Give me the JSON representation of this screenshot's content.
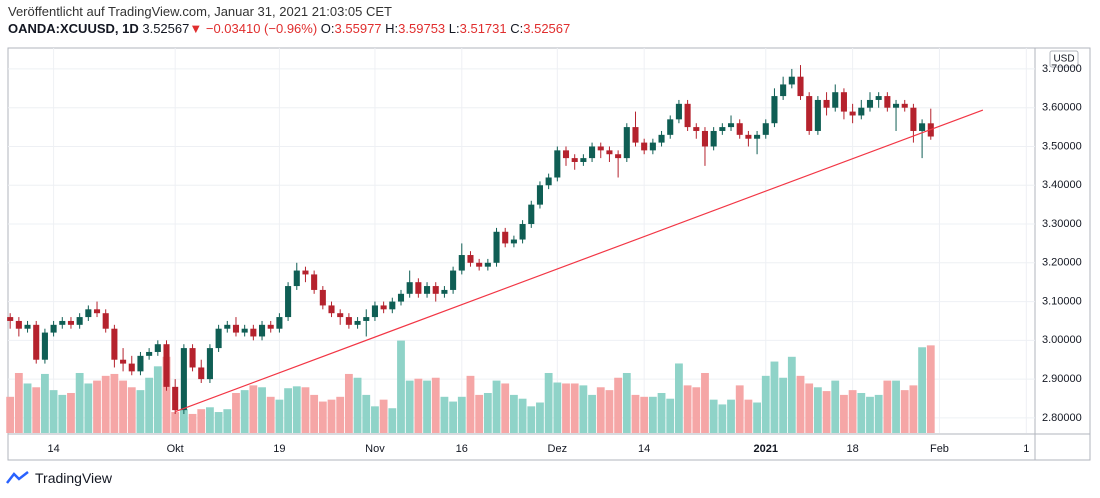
{
  "header": {
    "published": "Veröffentlicht auf TradingView.com, Januar 31, 2021 21:03:05 CET",
    "symbol": "OANDA:XCUUSD, 1D",
    "last": "3.52567",
    "arrow": "▼",
    "change": "−0.03410 (−0.96%)",
    "open_label": "O:",
    "open": "3.55977",
    "high_label": "H:",
    "high": "3.59753",
    "low_label": "L:",
    "low": "3.51731",
    "close_label": "C:",
    "close": "3.52567"
  },
  "footer": {
    "logo": "TradingView"
  },
  "chart_data": {
    "type": "candlestick",
    "currency": "USD",
    "up_color": "#0f5e54",
    "down_color": "#b5222d",
    "volume_up_color": "#8fd3c8",
    "volume_down_color": "#f5a6a6",
    "grid": true,
    "xlim": [
      -0.25,
      118
    ],
    "ylim": [
      2.761,
      3.754
    ],
    "yticks": [
      {
        "value": 2.8,
        "label": "2.80000"
      },
      {
        "value": 2.9,
        "label": "2.90000"
      },
      {
        "value": 3.0,
        "label": "3.00000"
      },
      {
        "value": 3.1,
        "label": "3.10000"
      },
      {
        "value": 3.2,
        "label": "3.20000"
      },
      {
        "value": 3.3,
        "label": "3.30000"
      },
      {
        "value": 3.4,
        "label": "3.40000"
      },
      {
        "value": 3.5,
        "label": "3.50000"
      },
      {
        "value": 3.6,
        "label": "3.60000"
      },
      {
        "value": 3.7,
        "label": "3.70000"
      }
    ],
    "xticks": [
      {
        "value": 5,
        "label": "14"
      },
      {
        "value": 19,
        "label": "Okt"
      },
      {
        "value": 31,
        "label": "19"
      },
      {
        "value": 42,
        "label": "Nov"
      },
      {
        "value": 52,
        "label": "16"
      },
      {
        "value": 63,
        "label": "Dez"
      },
      {
        "value": 73,
        "label": "14"
      },
      {
        "value": 87,
        "label": "2021"
      },
      {
        "value": 97,
        "label": "18"
      },
      {
        "value": 107,
        "label": "Feb"
      },
      {
        "value": 117,
        "label": "1"
      }
    ],
    "ohlc": [
      [
        3.06,
        3.07,
        3.03,
        3.05
      ],
      [
        3.05,
        3.06,
        3.01,
        3.03
      ],
      [
        3.03,
        3.05,
        3.02,
        3.04
      ],
      [
        3.04,
        3.05,
        2.94,
        2.95
      ],
      [
        2.95,
        3.03,
        2.94,
        3.02
      ],
      [
        3.02,
        3.05,
        3.01,
        3.04
      ],
      [
        3.04,
        3.06,
        3.03,
        3.05
      ],
      [
        3.05,
        3.06,
        3.03,
        3.04
      ],
      [
        3.04,
        3.07,
        3.03,
        3.06
      ],
      [
        3.06,
        3.09,
        3.05,
        3.08
      ],
      [
        3.08,
        3.1,
        3.06,
        3.07
      ],
      [
        3.07,
        3.08,
        3.02,
        3.03
      ],
      [
        3.03,
        3.04,
        2.93,
        2.95
      ],
      [
        2.95,
        2.98,
        2.92,
        2.94
      ],
      [
        2.94,
        2.96,
        2.91,
        2.92
      ],
      [
        2.92,
        2.97,
        2.91,
        2.96
      ],
      [
        2.96,
        2.98,
        2.95,
        2.97
      ],
      [
        2.97,
        3.0,
        2.96,
        2.99
      ],
      [
        2.99,
        3.0,
        2.87,
        2.88
      ],
      [
        2.88,
        2.9,
        2.81,
        2.82
      ],
      [
        2.82,
        2.99,
        2.81,
        2.98
      ],
      [
        2.98,
        2.99,
        2.92,
        2.93
      ],
      [
        2.93,
        2.95,
        2.89,
        2.9
      ],
      [
        2.9,
        2.99,
        2.89,
        2.98
      ],
      [
        2.98,
        3.04,
        2.97,
        3.03
      ],
      [
        3.03,
        3.05,
        3.02,
        3.04
      ],
      [
        3.04,
        3.06,
        3.01,
        3.02
      ],
      [
        3.02,
        3.04,
        3.01,
        3.03
      ],
      [
        3.03,
        3.04,
        3.0,
        3.01
      ],
      [
        3.01,
        3.05,
        3.0,
        3.04
      ],
      [
        3.04,
        3.05,
        3.02,
        3.03
      ],
      [
        3.03,
        3.07,
        3.02,
        3.06
      ],
      [
        3.06,
        3.15,
        3.05,
        3.14
      ],
      [
        3.14,
        3.2,
        3.13,
        3.18
      ],
      [
        3.18,
        3.19,
        3.15,
        3.17
      ],
      [
        3.17,
        3.18,
        3.12,
        3.13
      ],
      [
        3.13,
        3.14,
        3.08,
        3.09
      ],
      [
        3.09,
        3.1,
        3.06,
        3.07
      ],
      [
        3.07,
        3.08,
        3.04,
        3.06
      ],
      [
        3.06,
        3.07,
        3.03,
        3.04
      ],
      [
        3.04,
        3.06,
        3.03,
        3.05
      ],
      [
        3.05,
        3.08,
        3.01,
        3.06
      ],
      [
        3.06,
        3.1,
        3.05,
        3.09
      ],
      [
        3.09,
        3.1,
        3.07,
        3.08
      ],
      [
        3.08,
        3.11,
        3.07,
        3.1
      ],
      [
        3.1,
        3.13,
        3.09,
        3.12
      ],
      [
        3.12,
        3.18,
        3.11,
        3.15
      ],
      [
        3.15,
        3.16,
        3.11,
        3.12
      ],
      [
        3.12,
        3.15,
        3.11,
        3.14
      ],
      [
        3.14,
        3.15,
        3.1,
        3.12
      ],
      [
        3.12,
        3.14,
        3.11,
        3.13
      ],
      [
        3.13,
        3.19,
        3.12,
        3.18
      ],
      [
        3.18,
        3.25,
        3.17,
        3.22
      ],
      [
        3.22,
        3.23,
        3.19,
        3.2
      ],
      [
        3.2,
        3.21,
        3.18,
        3.19
      ],
      [
        3.19,
        3.21,
        3.18,
        3.2
      ],
      [
        3.2,
        3.29,
        3.19,
        3.28
      ],
      [
        3.28,
        3.29,
        3.24,
        3.25
      ],
      [
        3.25,
        3.27,
        3.24,
        3.26
      ],
      [
        3.26,
        3.31,
        3.25,
        3.3
      ],
      [
        3.3,
        3.36,
        3.29,
        3.35
      ],
      [
        3.35,
        3.41,
        3.34,
        3.4
      ],
      [
        3.4,
        3.43,
        3.39,
        3.42
      ],
      [
        3.42,
        3.5,
        3.41,
        3.49
      ],
      [
        3.49,
        3.5,
        3.45,
        3.47
      ],
      [
        3.47,
        3.48,
        3.44,
        3.46
      ],
      [
        3.46,
        3.48,
        3.45,
        3.47
      ],
      [
        3.47,
        3.51,
        3.46,
        3.5
      ],
      [
        3.5,
        3.51,
        3.47,
        3.49
      ],
      [
        3.49,
        3.5,
        3.46,
        3.48
      ],
      [
        3.48,
        3.49,
        3.42,
        3.47
      ],
      [
        3.47,
        3.56,
        3.46,
        3.55
      ],
      [
        3.55,
        3.59,
        3.5,
        3.51
      ],
      [
        3.51,
        3.52,
        3.48,
        3.49
      ],
      [
        3.49,
        3.52,
        3.48,
        3.51
      ],
      [
        3.51,
        3.54,
        3.5,
        3.53
      ],
      [
        3.53,
        3.58,
        3.52,
        3.57
      ],
      [
        3.57,
        3.62,
        3.56,
        3.61
      ],
      [
        3.61,
        3.62,
        3.54,
        3.55
      ],
      [
        3.55,
        3.56,
        3.52,
        3.54
      ],
      [
        3.54,
        3.55,
        3.45,
        3.5
      ],
      [
        3.5,
        3.55,
        3.49,
        3.54
      ],
      [
        3.54,
        3.56,
        3.53,
        3.55
      ],
      [
        3.55,
        3.58,
        3.54,
        3.56
      ],
      [
        3.56,
        3.57,
        3.52,
        3.53
      ],
      [
        3.53,
        3.54,
        3.5,
        3.52
      ],
      [
        3.52,
        3.54,
        3.48,
        3.53
      ],
      [
        3.53,
        3.57,
        3.52,
        3.56
      ],
      [
        3.56,
        3.65,
        3.55,
        3.63
      ],
      [
        3.63,
        3.68,
        3.62,
        3.66
      ],
      [
        3.66,
        3.7,
        3.65,
        3.68
      ],
      [
        3.68,
        3.71,
        3.62,
        3.63
      ],
      [
        3.63,
        3.64,
        3.53,
        3.54
      ],
      [
        3.54,
        3.63,
        3.53,
        3.62
      ],
      [
        3.62,
        3.64,
        3.58,
        3.6
      ],
      [
        3.6,
        3.66,
        3.59,
        3.64
      ],
      [
        3.64,
        3.65,
        3.57,
        3.59
      ],
      [
        3.59,
        3.61,
        3.56,
        3.58
      ],
      [
        3.58,
        3.62,
        3.57,
        3.6
      ],
      [
        3.6,
        3.64,
        3.59,
        3.62
      ],
      [
        3.62,
        3.64,
        3.6,
        3.63
      ],
      [
        3.63,
        3.64,
        3.59,
        3.6
      ],
      [
        3.6,
        3.62,
        3.54,
        3.61
      ],
      [
        3.61,
        3.62,
        3.59,
        3.6
      ],
      [
        3.6,
        3.61,
        3.51,
        3.54
      ],
      [
        3.54,
        3.57,
        3.47,
        3.55977
      ],
      [
        3.55977,
        3.59753,
        3.51731,
        3.52567
      ]
    ],
    "volume": [
      38,
      63,
      52,
      48,
      62,
      45,
      40,
      42,
      63,
      52,
      55,
      60,
      62,
      55,
      48,
      45,
      58,
      70,
      80,
      22,
      25,
      20,
      25,
      27,
      22,
      25,
      42,
      45,
      50,
      48,
      38,
      35,
      47,
      49,
      48,
      40,
      33,
      35,
      38,
      62,
      58,
      40,
      28,
      35,
      26,
      97,
      55,
      57,
      55,
      58,
      38,
      33,
      38,
      60,
      40,
      42,
      55,
      52,
      40,
      36,
      28,
      32,
      63,
      53,
      52,
      52,
      50,
      40,
      48,
      45,
      58,
      63,
      40,
      38,
      38,
      42,
      36,
      73,
      50,
      48,
      63,
      35,
      30,
      35,
      50,
      35,
      32,
      60,
      75,
      58,
      80,
      60,
      52,
      48,
      44,
      55,
      40,
      45,
      42,
      38,
      40,
      55,
      55,
      45,
      50,
      90,
      92
    ],
    "trendline": {
      "x": [
        19,
        112
      ],
      "y": [
        2.816,
        3.594
      ]
    }
  }
}
